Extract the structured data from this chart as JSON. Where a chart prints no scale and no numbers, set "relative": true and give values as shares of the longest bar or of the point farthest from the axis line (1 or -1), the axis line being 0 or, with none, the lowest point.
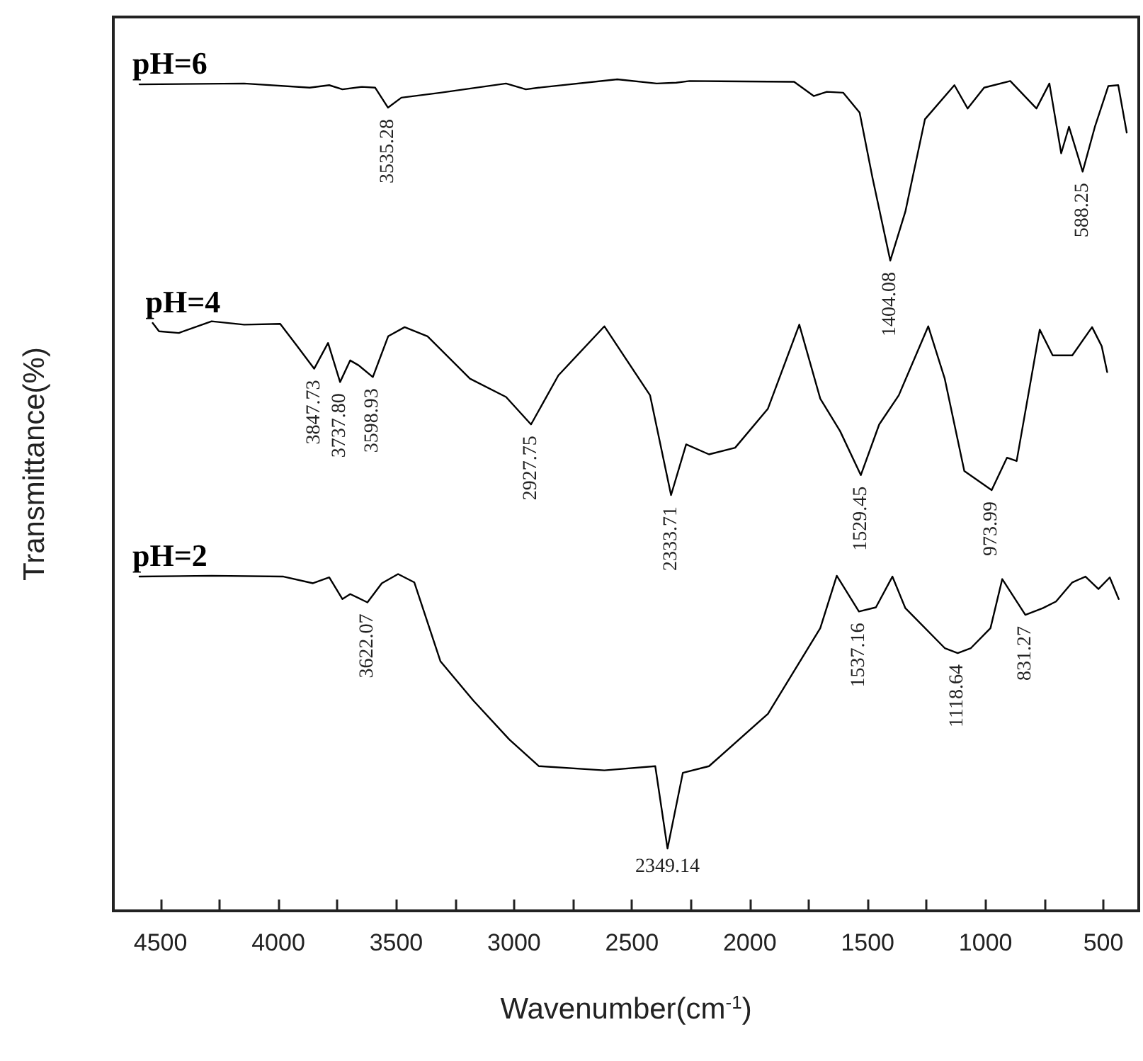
{
  "chart_data": {
    "type": "line",
    "relative": true,
    "xlabel": "Wavenumber(cm$^{-1}$)",
    "ylabel": "Transmittance(%)",
    "xlim": [
      4700,
      350
    ],
    "xticks": [
      4500,
      {
        "value": 4250,
        "label": null
      },
      4000,
      {
        "value": 3750,
        "label": null
      },
      3500,
      {
        "value": 3250,
        "label": null
      },
      3000,
      {
        "value": 2750,
        "label": null
      },
      2500,
      {
        "value": 2250,
        "label": null
      },
      2000,
      {
        "value": 1750,
        "label": null
      },
      1500,
      {
        "value": 1250,
        "label": null
      },
      1000,
      {
        "value": 750,
        "label": null
      },
      500
    ],
    "grid": false,
    "legend": false,
    "marker": "none",
    "line_style": "solid",
    "series": [
      {
        "name": "pH=6",
        "color": "#000000",
        "x": [
          4589,
          4145,
          3867,
          3784,
          3728,
          3645,
          3589,
          3535,
          3478,
          3312,
          3034,
          2950,
          2895,
          2562,
          2395,
          2312,
          2256,
          1812,
          1729,
          1673,
          1604,
          1534,
          1479,
          1404,
          1340,
          1257,
          1132,
          1076,
          1006,
          895,
          784,
          729,
          679,
          646,
          588,
          535,
          479,
          437,
          401
        ],
        "values": [
          0.994,
          0.995,
          0.99,
          0.993,
          0.988,
          0.991,
          0.99,
          0.966,
          0.978,
          0.984,
          0.995,
          0.988,
          0.99,
          1.0,
          0.995,
          0.996,
          0.998,
          0.997,
          0.98,
          0.985,
          0.984,
          0.96,
          0.881,
          0.782,
          0.841,
          0.952,
          0.993,
          0.965,
          0.99,
          0.998,
          0.965,
          0.995,
          0.911,
          0.943,
          0.889,
          0.944,
          0.992,
          0.993,
          0.936
        ]
      },
      {
        "name": "pH=4",
        "color": "#000000",
        "x": [
          4533,
          4506,
          4422,
          4283,
          4145,
          3992,
          3922,
          3848,
          3789,
          3738,
          3695,
          3659,
          3599,
          3534,
          3464,
          3367,
          3187,
          3034,
          2928,
          2812,
          2617,
          2423,
          2334,
          2270,
          2173,
          2062,
          1923,
          1790,
          1701,
          1617,
          1529,
          1451,
          1368,
          1243,
          1173,
          1090,
          974,
          909,
          868,
          770,
          715,
          632,
          548,
          507,
          484
        ],
        "values": [
          0.707,
          0.697,
          0.695,
          0.709,
          0.705,
          0.706,
          0.68,
          0.652,
          0.683,
          0.636,
          0.662,
          0.656,
          0.642,
          0.691,
          0.702,
          0.691,
          0.64,
          0.618,
          0.585,
          0.644,
          0.703,
          0.62,
          0.5,
          0.561,
          0.549,
          0.557,
          0.604,
          0.705,
          0.616,
          0.577,
          0.524,
          0.585,
          0.62,
          0.703,
          0.64,
          0.529,
          0.506,
          0.545,
          0.541,
          0.699,
          0.668,
          0.668,
          0.702,
          0.679,
          0.648
        ]
      },
      {
        "name": "pH=2",
        "color": "#000000",
        "x": [
          4589,
          4283,
          3978,
          3853,
          3784,
          3728,
          3695,
          3622,
          3561,
          3492,
          3423,
          3312,
          3173,
          3020,
          2895,
          2617,
          2401,
          2349,
          2284,
          2173,
          1923,
          1701,
          1631,
          1537,
          1465,
          1395,
          1340,
          1173,
          1118,
          1062,
          979,
          929,
          831,
          757,
          701,
          632,
          576,
          521,
          473,
          435
        ],
        "values": [
          0.402,
          0.403,
          0.402,
          0.394,
          0.401,
          0.375,
          0.381,
          0.371,
          0.394,
          0.405,
          0.395,
          0.3,
          0.253,
          0.206,
          0.174,
          0.169,
          0.174,
          0.075,
          0.166,
          0.174,
          0.237,
          0.34,
          0.403,
          0.36,
          0.365,
          0.402,
          0.364,
          0.316,
          0.31,
          0.316,
          0.34,
          0.399,
          0.356,
          0.364,
          0.372,
          0.395,
          0.402,
          0.387,
          0.401,
          0.375
        ]
      }
    ],
    "annotations": [
      {
        "text": "3535.28",
        "x": 3535,
        "y": 0.966
      },
      {
        "text": "1404.08",
        "x": 1404,
        "y": 0.782
      },
      {
        "text": "588.25",
        "x": 588,
        "y": 0.889
      },
      {
        "text": "3847.73",
        "x": 3848,
        "y": 0.652
      },
      {
        "text": "3737.80",
        "x": 3738,
        "y": 0.636
      },
      {
        "text": "3598.93",
        "x": 3599,
        "y": 0.642
      },
      {
        "text": "2927.75",
        "x": 2928,
        "y": 0.585
      },
      {
        "text": "2333.71",
        "x": 2334,
        "y": 0.5
      },
      {
        "text": "1529.45",
        "x": 1529,
        "y": 0.524
      },
      {
        "text": "973.99",
        "x": 974,
        "y": 0.506
      },
      {
        "text": "3622.07",
        "x": 3622,
        "y": 0.371
      },
      {
        "text": "2349.14",
        "x": 2349,
        "y": 0.075
      },
      {
        "text": "1537.16",
        "x": 1537,
        "y": 0.36
      },
      {
        "text": "1118.64",
        "x": 1118,
        "y": 0.31
      },
      {
        "text": "831.27",
        "x": 831,
        "y": 0.356
      }
    ]
  }
}
